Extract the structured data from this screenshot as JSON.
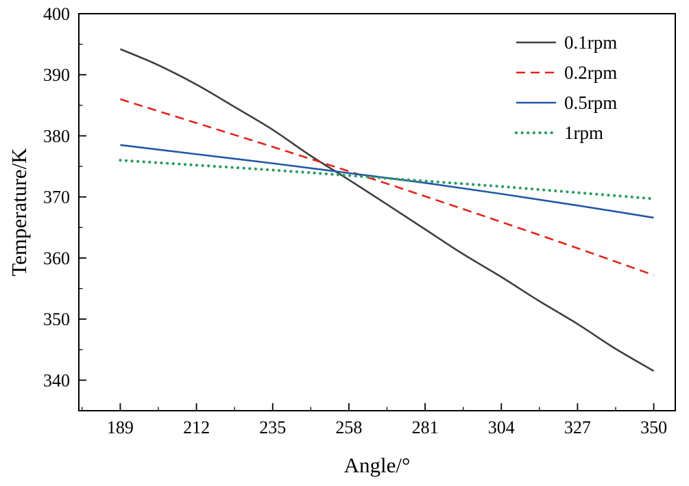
{
  "figure": {
    "background": "#ffffff",
    "axis_color": "#000000",
    "text_color": "#000000"
  },
  "chart_data": {
    "type": "line",
    "title": "",
    "xlabel": "Angle/°",
    "ylabel": "Temperature/K",
    "xlim": [
      176.5,
      356.5
    ],
    "ylim": [
      335,
      400
    ],
    "x_ticks": [
      189,
      212,
      235,
      258,
      281,
      304,
      327,
      350
    ],
    "y_ticks": [
      340,
      350,
      360,
      370,
      380,
      390,
      400
    ],
    "x_minor_step": 11.5,
    "y_minor_step": 5,
    "grid": false,
    "legend_position": "top-right",
    "series": [
      {
        "name": "0.1rpm",
        "color": "#3f3f3f",
        "line_style": "solid",
        "width": 2.6,
        "x": [
          189,
          200,
          212,
          223,
          235,
          246,
          258,
          270,
          281,
          292,
          304,
          315,
          327,
          338,
          350
        ],
        "y": [
          394.2,
          391.7,
          388.4,
          384.9,
          381.0,
          376.9,
          372.8,
          368.6,
          364.7,
          360.8,
          356.9,
          353.1,
          349.2,
          345.3,
          341.5
        ]
      },
      {
        "name": "0.2rpm",
        "color": "#e2231a",
        "line_style": "dashed",
        "width": 2.6,
        "x": [
          189,
          212,
          235,
          258,
          281,
          304,
          327,
          350
        ],
        "y": [
          386.0,
          382.1,
          378.2,
          374.2,
          370.1,
          365.9,
          361.6,
          357.2
        ]
      },
      {
        "name": "0.5rpm",
        "color": "#2257a5",
        "line_style": "solid",
        "width": 2.6,
        "x": [
          189,
          212,
          235,
          258,
          281,
          304,
          327,
          350
        ],
        "y": [
          378.5,
          377.0,
          375.5,
          373.9,
          372.3,
          370.5,
          368.6,
          366.6
        ]
      },
      {
        "name": "1rpm",
        "color": "#2a9b5f",
        "line_style": "dotted",
        "width": 4.2,
        "x": [
          189,
          212,
          235,
          258,
          281,
          304,
          327,
          350
        ],
        "y": [
          376.0,
          375.2,
          374.4,
          373.5,
          372.6,
          371.7,
          370.7,
          369.7
        ]
      }
    ]
  }
}
